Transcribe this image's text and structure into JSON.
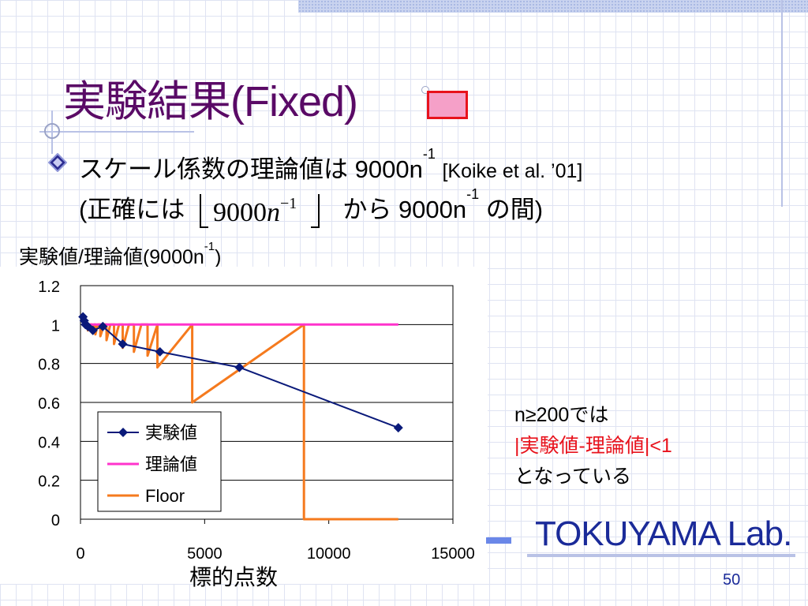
{
  "slide": {
    "title": "実験結果(Fixed)",
    "line1_text": "スケール係数の理論値は 9000n",
    "line1_exp": "-1",
    "line1_cite": "[Koike et al. ’01]",
    "line2_prefix": "(正確には",
    "line2_middle": "から 9000n",
    "line2_exp": "-1",
    "line2_suffix": " の間)",
    "formula_base": "9000",
    "formula_var": "n",
    "formula_exp": "−1",
    "ylabel_text": "実験値/理論値(9000n",
    "ylabel_exp": "-1",
    "ylabel_close": ")",
    "xlabel": "標的点数",
    "note_line1": "n≥200では",
    "note_line2": "|実験値-理論値|<1",
    "note_line3": "となっている",
    "logo": "TOKUYAMA Lab.",
    "page_number": "50"
  },
  "colors": {
    "title": "#5a0a66",
    "experiment": "#0a1a7a",
    "theory": "#ff33cc",
    "floor": "#f57a1e",
    "highlight": "#e8121c",
    "logo": "#1a2a99"
  },
  "icons": [
    "diamond-bullet-icon",
    "crosshair-decoration-icon",
    "pink-box-decoration"
  ],
  "chart_data": {
    "type": "line",
    "xlim": [
      0,
      15000
    ],
    "ylim": [
      0,
      1.2
    ],
    "x_ticks": [
      "0",
      "5000",
      "10000",
      "15000"
    ],
    "y_ticks": [
      "0",
      "0.2",
      "0.4",
      "0.6",
      "0.8",
      "1",
      "1.2"
    ],
    "grid": true,
    "legend_position": "bottom-left",
    "series": [
      {
        "name": "実験値",
        "style": "line-diamond",
        "points": [
          [
            100,
            1.04
          ],
          [
            150,
            1.02
          ],
          [
            200,
            1.0
          ],
          [
            300,
            0.99
          ],
          [
            500,
            0.97
          ],
          [
            900,
            0.99
          ],
          [
            1700,
            0.9
          ],
          [
            3200,
            0.86
          ],
          [
            6400,
            0.78
          ],
          [
            12800,
            0.47
          ]
        ]
      },
      {
        "name": "理論値",
        "style": "line",
        "points": [
          [
            100,
            1.0
          ],
          [
            12800,
            1.0
          ]
        ]
      },
      {
        "name": "Floor",
        "style": "line",
        "points": [
          [
            100,
            1.0
          ],
          [
            300,
            1.0
          ],
          [
            300,
            0.97
          ],
          [
            400,
            1.0
          ],
          [
            450,
            1.0
          ],
          [
            450,
            0.96
          ],
          [
            550,
            1.0
          ],
          [
            600,
            1.0
          ],
          [
            600,
            0.95
          ],
          [
            700,
            1.0
          ],
          [
            800,
            1.0
          ],
          [
            800,
            0.94
          ],
          [
            950,
            1.0
          ],
          [
            1050,
            1.0
          ],
          [
            1050,
            0.92
          ],
          [
            1200,
            1.0
          ],
          [
            1350,
            1.0
          ],
          [
            1350,
            0.9
          ],
          [
            1550,
            1.0
          ],
          [
            1700,
            1.0
          ],
          [
            1700,
            0.88
          ],
          [
            1950,
            1.0
          ],
          [
            2150,
            1.0
          ],
          [
            2150,
            0.86
          ],
          [
            2450,
            1.0
          ],
          [
            2700,
            1.0
          ],
          [
            2700,
            0.84
          ],
          [
            3100,
            1.0
          ],
          [
            3100,
            0.78
          ],
          [
            4500,
            1.0
          ],
          [
            4500,
            0.6
          ],
          [
            9000,
            1.0
          ],
          [
            9000,
            0.0
          ],
          [
            12800,
            0.0
          ]
        ]
      }
    ]
  }
}
